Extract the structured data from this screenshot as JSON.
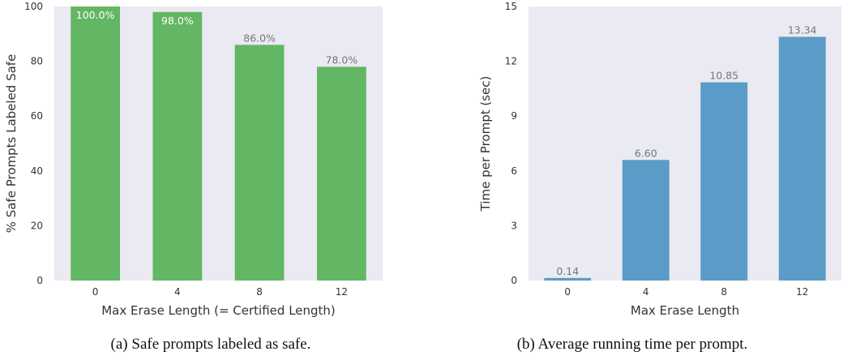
{
  "charts": [
    {
      "caption": "(a) Safe prompts labeled as safe.",
      "color": "#63b664",
      "chart_data": {
        "type": "bar",
        "categories": [
          "0",
          "4",
          "8",
          "12"
        ],
        "values": [
          100.0,
          98.0,
          86.0,
          78.0
        ],
        "data_labels": [
          "100.0%",
          "98.0%",
          "86.0%",
          "78.0%"
        ],
        "label_inside": [
          true,
          true,
          false,
          false
        ],
        "xlabel": "Max Erase Length (= Certified Length)",
        "ylabel": "% Safe Prompts Labeled Safe",
        "ylim": [
          0,
          100
        ],
        "yticks": [
          0,
          20,
          40,
          60,
          80,
          100
        ],
        "grid": false,
        "background": "#eaeaf2"
      }
    },
    {
      "caption": "(b) Average running time per prompt.",
      "color": "#5b9bc8",
      "chart_data": {
        "type": "bar",
        "categories": [
          "0",
          "4",
          "8",
          "12"
        ],
        "values": [
          0.14,
          6.6,
          10.85,
          13.34
        ],
        "data_labels": [
          "0.14",
          "6.60",
          "10.85",
          "13.34"
        ],
        "label_inside": [
          false,
          false,
          false,
          false
        ],
        "xlabel": "Max Erase Length",
        "ylabel": "Time per Prompt (sec)",
        "ylim": [
          0,
          15
        ],
        "yticks": [
          0,
          3,
          6,
          9,
          12,
          15
        ],
        "grid": false,
        "background": "#eaeaf2"
      }
    }
  ]
}
